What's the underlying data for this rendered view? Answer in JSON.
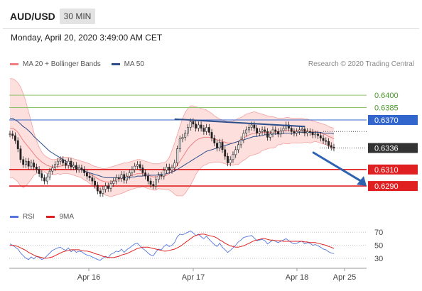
{
  "header": {
    "symbol": "AUD/USD",
    "timeframe": "30 MIN",
    "datetime": "Monday, April 20, 2020 3:49:00 AM CET"
  },
  "legend": {
    "bollinger_label": "MA 20 + Bollinger Bands",
    "ma50_label": "MA 50",
    "credit": "Research © 2020 Trading Central"
  },
  "rsi_legend": {
    "rsi_label": "RSI",
    "ma_label": "9MA"
  },
  "colors": {
    "bollinger": "#f08080",
    "bollinger_fill": "#fde0de",
    "ma50": "#2d4e8a",
    "resistance_green": "#8fc26a",
    "pivot_blue": "#3366cc",
    "support_red": "#e02020",
    "current": "#333333",
    "rsi": "#5577dd",
    "rsi_ma": "#e02020",
    "arrow": "#2d63b0"
  },
  "chart_data": [
    {
      "type": "candlestick",
      "title": "AUD/USD",
      "x_tick_labels": [
        "Apr 16",
        "Apr 17",
        "Apr 18",
        "Apr 25"
      ],
      "price_levels": [
        {
          "label": "0.6400",
          "value": 0.64,
          "role": "resistance"
        },
        {
          "label": "0.6385",
          "value": 0.6385,
          "role": "resistance"
        },
        {
          "label": "0.6370",
          "value": 0.637,
          "role": "pivot"
        },
        {
          "label": "0.6336",
          "value": 0.6336,
          "role": "current"
        },
        {
          "label": "0.6310",
          "value": 0.631,
          "role": "support"
        },
        {
          "label": "0.6290",
          "value": 0.629,
          "role": "support"
        }
      ],
      "ylim": [
        0.6266,
        0.6425
      ],
      "close": [
        0.6353,
        0.6351,
        0.6345,
        0.6335,
        0.6322,
        0.6316,
        0.632,
        0.6314,
        0.6318,
        0.6313,
        0.631,
        0.6305,
        0.63,
        0.6296,
        0.6301,
        0.6308,
        0.6312,
        0.6316,
        0.632,
        0.6322,
        0.6318,
        0.6315,
        0.632,
        0.6313,
        0.6315,
        0.631,
        0.6312,
        0.631,
        0.6306,
        0.6302,
        0.63,
        0.6296,
        0.6291,
        0.6284,
        0.6281,
        0.6286,
        0.629,
        0.6287,
        0.6293,
        0.6296,
        0.63,
        0.6299,
        0.6304,
        0.6297,
        0.6302,
        0.6306,
        0.631,
        0.6314,
        0.6316,
        0.6312,
        0.6306,
        0.6302,
        0.6296,
        0.6292,
        0.629,
        0.6298,
        0.6303,
        0.6302,
        0.6309,
        0.6313,
        0.6309,
        0.6312,
        0.6318,
        0.6335,
        0.6347,
        0.6349,
        0.6354,
        0.6361,
        0.6368,
        0.6365,
        0.636,
        0.6364,
        0.636,
        0.6356,
        0.6361,
        0.6355,
        0.6348,
        0.6342,
        0.6336,
        0.6343,
        0.6334,
        0.6326,
        0.6318,
        0.6322,
        0.6328,
        0.6334,
        0.634,
        0.6346,
        0.6354,
        0.6358,
        0.6361,
        0.6364,
        0.636,
        0.6354,
        0.6356,
        0.6358,
        0.6356,
        0.6349,
        0.6353,
        0.6358,
        0.6356,
        0.6353,
        0.6357,
        0.636,
        0.6364,
        0.636,
        0.6356,
        0.6354,
        0.6356,
        0.6358,
        0.6359,
        0.6354,
        0.6356,
        0.6355,
        0.6352,
        0.6353,
        0.6351,
        0.6348,
        0.6345,
        0.6344,
        0.6339,
        0.6337,
        0.6336
      ],
      "bollinger_upper": [
        0.642,
        0.642,
        0.6418,
        0.6415,
        0.641,
        0.6402,
        0.6392,
        0.638,
        0.6368,
        0.6355,
        0.6345,
        0.6337,
        0.6331,
        0.6327,
        0.6325,
        0.6323,
        0.6322,
        0.6322,
        0.6323,
        0.6324,
        0.6325,
        0.6325,
        0.6325,
        0.6324,
        0.6323,
        0.6322,
        0.6321,
        0.632,
        0.6319,
        0.6318,
        0.6317,
        0.6315,
        0.6314,
        0.6313,
        0.6312,
        0.6311,
        0.6311,
        0.6312,
        0.6313,
        0.6314,
        0.6315,
        0.6316,
        0.6317,
        0.6318,
        0.6318,
        0.6319,
        0.632,
        0.6321,
        0.6322,
        0.6322,
        0.6321,
        0.632,
        0.6319,
        0.6318,
        0.6317,
        0.6317,
        0.6317,
        0.6318,
        0.6318,
        0.632,
        0.6325,
        0.6333,
        0.6342,
        0.6352,
        0.6362,
        0.6372,
        0.6379,
        0.6384,
        0.6387,
        0.6387,
        0.6386,
        0.6385,
        0.6384,
        0.6383,
        0.6382,
        0.638,
        0.6378,
        0.6375,
        0.6373,
        0.6371,
        0.637,
        0.6369,
        0.6368,
        0.6368,
        0.6369,
        0.637,
        0.6372,
        0.6373,
        0.6375,
        0.6377,
        0.6378,
        0.6379,
        0.638,
        0.6379,
        0.6378,
        0.6377,
        0.6376,
        0.6375,
        0.6374,
        0.6374,
        0.6373,
        0.6372,
        0.6372,
        0.6372,
        0.6373,
        0.6373,
        0.6372,
        0.6372,
        0.6372,
        0.6372,
        0.6372,
        0.6371,
        0.6371,
        0.637,
        0.6369,
        0.6368,
        0.6367,
        0.6366,
        0.6365,
        0.6364,
        0.6362,
        0.6361,
        0.636
      ],
      "bollinger_mid": [
        0.636,
        0.636,
        0.6358,
        0.6355,
        0.635,
        0.6345,
        0.6341,
        0.6337,
        0.6333,
        0.6329,
        0.6325,
        0.6322,
        0.6319,
        0.6317,
        0.6315,
        0.6314,
        0.6313,
        0.6313,
        0.6314,
        0.6314,
        0.6315,
        0.6315,
        0.6315,
        0.6314,
        0.6313,
        0.6312,
        0.6311,
        0.631,
        0.6308,
        0.6307,
        0.6305,
        0.6303,
        0.6301,
        0.6299,
        0.6297,
        0.6296,
        0.6295,
        0.6295,
        0.6295,
        0.6296,
        0.6297,
        0.6298,
        0.6299,
        0.63,
        0.6301,
        0.6302,
        0.6303,
        0.6304,
        0.6305,
        0.6305,
        0.6305,
        0.6304,
        0.6303,
        0.6302,
        0.6301,
        0.6301,
        0.6302,
        0.6302,
        0.6302,
        0.6303,
        0.6305,
        0.6308,
        0.6311,
        0.6315,
        0.632,
        0.6325,
        0.633,
        0.6335,
        0.6339,
        0.6342,
        0.6345,
        0.6347,
        0.6348,
        0.6349,
        0.6349,
        0.6349,
        0.6348,
        0.6347,
        0.6346,
        0.6345,
        0.6344,
        0.6343,
        0.6342,
        0.6342,
        0.6342,
        0.6343,
        0.6344,
        0.6346,
        0.6348,
        0.635,
        0.6352,
        0.6353,
        0.6354,
        0.6354,
        0.6354,
        0.6355,
        0.6355,
        0.6355,
        0.6355,
        0.6355,
        0.6355,
        0.6356,
        0.6356,
        0.6357,
        0.6357,
        0.6357,
        0.6357,
        0.6357,
        0.6357,
        0.6357,
        0.6357,
        0.6357,
        0.6357,
        0.6356,
        0.6356,
        0.6356,
        0.6355,
        0.6354,
        0.6353,
        0.6352,
        0.635,
        0.6349,
        0.6347
      ],
      "bollinger_lower": [
        0.63,
        0.63,
        0.6298,
        0.6295,
        0.629,
        0.6288,
        0.629,
        0.6294,
        0.6298,
        0.6303,
        0.6305,
        0.6307,
        0.6307,
        0.6307,
        0.6305,
        0.6305,
        0.6304,
        0.6304,
        0.6305,
        0.6304,
        0.6305,
        0.6305,
        0.6305,
        0.6304,
        0.6303,
        0.6302,
        0.6301,
        0.63,
        0.6297,
        0.6296,
        0.6293,
        0.6291,
        0.6288,
        0.6285,
        0.6282,
        0.6281,
        0.6279,
        0.6278,
        0.6277,
        0.6278,
        0.6279,
        0.628,
        0.6281,
        0.6282,
        0.6284,
        0.6285,
        0.6286,
        0.6287,
        0.6288,
        0.6288,
        0.6289,
        0.6288,
        0.6287,
        0.6286,
        0.6285,
        0.6285,
        0.6287,
        0.6286,
        0.6286,
        0.6286,
        0.6285,
        0.6283,
        0.628,
        0.6278,
        0.6278,
        0.6278,
        0.6281,
        0.6286,
        0.6291,
        0.6297,
        0.6304,
        0.6309,
        0.6312,
        0.6315,
        0.6316,
        0.6318,
        0.6318,
        0.6319,
        0.6319,
        0.6319,
        0.6318,
        0.6317,
        0.6316,
        0.6316,
        0.6315,
        0.6316,
        0.6316,
        0.6319,
        0.6321,
        0.6323,
        0.6326,
        0.6327,
        0.6328,
        0.6329,
        0.633,
        0.6333,
        0.6334,
        0.6335,
        0.6336,
        0.6336,
        0.6337,
        0.634,
        0.634,
        0.6342,
        0.6341,
        0.6341,
        0.6342,
        0.6342,
        0.6342,
        0.6342,
        0.6342,
        0.6343,
        0.6343,
        0.6342,
        0.6343,
        0.6344,
        0.6343,
        0.6342,
        0.6341,
        0.634,
        0.6338,
        0.6337,
        0.6334
      ],
      "ma50": [
        0.6372,
        0.6372,
        0.637,
        0.6368,
        0.6365,
        0.6362,
        0.636,
        0.6357,
        0.6354,
        0.635,
        0.6347,
        0.6344,
        0.6341,
        0.6338,
        0.6335,
        0.6332,
        0.633,
        0.6328,
        0.6326,
        0.6324,
        0.6322,
        0.632,
        0.6318,
        0.6316,
        0.6314,
        0.6313,
        0.6311,
        0.631,
        0.6308,
        0.6307,
        0.6306,
        0.6305,
        0.6304,
        0.6303,
        0.6302,
        0.6301,
        0.63,
        0.63,
        0.63,
        0.63,
        0.63,
        0.63,
        0.63,
        0.63,
        0.63,
        0.63,
        0.6301,
        0.6301,
        0.6302,
        0.6302,
        0.6302,
        0.6303,
        0.6303,
        0.6303,
        0.6303,
        0.6303,
        0.6304,
        0.6304,
        0.6304,
        0.6305,
        0.6306,
        0.6307,
        0.6308,
        0.631,
        0.6312,
        0.6314,
        0.6316,
        0.6318,
        0.632,
        0.6322,
        0.6324,
        0.6326,
        0.6328,
        0.633,
        0.6332,
        0.6333,
        0.6334,
        0.6335,
        0.6336,
        0.6337,
        0.6338,
        0.6339,
        0.634,
        0.6341,
        0.6342,
        0.6343,
        0.6344,
        0.6345,
        0.6346,
        0.6347,
        0.6348,
        0.6349,
        0.635,
        0.635,
        0.6351,
        0.6351,
        0.6352,
        0.6352,
        0.6352,
        0.6353,
        0.6353,
        0.6353,
        0.6353,
        0.6354,
        0.6354,
        0.6354,
        0.6354,
        0.6354,
        0.6354,
        0.6355,
        0.6355,
        0.6355,
        0.6355,
        0.6355,
        0.6355,
        0.6355,
        0.6355,
        0.6355,
        0.6354,
        0.6354,
        0.6354,
        0.6354,
        0.6353
      ],
      "trendline": {
        "from": {
          "index": 62,
          "value": 0.6371
        },
        "to": {
          "index": 111,
          "value": 0.6362
        }
      },
      "projection": {
        "from": {
          "index": 114,
          "value": 0.6331
        },
        "to": {
          "index": 124,
          "value": 0.629
        }
      }
    },
    {
      "type": "line",
      "title": "RSI",
      "y_tick_labels": [
        "70",
        "50",
        "30"
      ],
      "ylim": [
        20,
        80
      ],
      "series": [
        {
          "name": "RSI",
          "values": [
            52,
            50,
            47,
            44,
            38,
            34,
            30,
            28,
            32,
            29,
            33,
            31,
            28,
            30,
            34,
            38,
            42,
            44,
            46,
            47,
            44,
            42,
            46,
            40,
            43,
            39,
            41,
            40,
            37,
            35,
            34,
            32,
            30,
            28,
            27,
            30,
            33,
            31,
            36,
            38,
            41,
            40,
            44,
            39,
            43,
            46,
            49,
            52,
            53,
            49,
            45,
            42,
            38,
            35,
            34,
            40,
            44,
            43,
            48,
            51,
            48,
            50,
            54,
            63,
            67,
            66,
            68,
            70,
            72,
            69,
            65,
            67,
            63,
            60,
            64,
            59,
            55,
            51,
            48,
            53,
            47,
            43,
            39,
            42,
            46,
            50,
            55,
            58,
            62,
            63,
            64,
            65,
            61,
            57,
            58,
            59,
            57,
            52,
            55,
            58,
            56,
            54,
            56,
            58,
            60,
            57,
            54,
            52,
            53,
            55,
            56,
            52,
            54,
            53,
            50,
            51,
            49,
            47,
            44,
            43,
            40,
            38,
            37
          ]
        },
        {
          "name": "9MA",
          "values": [
            50,
            50,
            49,
            48,
            46,
            44,
            42,
            39,
            37,
            35,
            33,
            32,
            31,
            30,
            30,
            31,
            32,
            34,
            36,
            38,
            40,
            41,
            42,
            43,
            43,
            43,
            43,
            42,
            41,
            41,
            40,
            39,
            37,
            36,
            35,
            33,
            32,
            31,
            31,
            31,
            32,
            33,
            35,
            36,
            37,
            39,
            41,
            43,
            45,
            46,
            47,
            47,
            47,
            46,
            45,
            44,
            43,
            42,
            41,
            41,
            42,
            43,
            44,
            46,
            48,
            51,
            54,
            57,
            60,
            63,
            65,
            66,
            67,
            67,
            66,
            65,
            64,
            63,
            61,
            58,
            56,
            53,
            51,
            49,
            48,
            47,
            47,
            48,
            49,
            51,
            53,
            55,
            57,
            58,
            59,
            60,
            60,
            59,
            58,
            58,
            57,
            57,
            57,
            56,
            56,
            56,
            56,
            56,
            56,
            56,
            56,
            55,
            55,
            54,
            54,
            54,
            53,
            52,
            51,
            50,
            48,
            47,
            45
          ]
        }
      ]
    }
  ]
}
